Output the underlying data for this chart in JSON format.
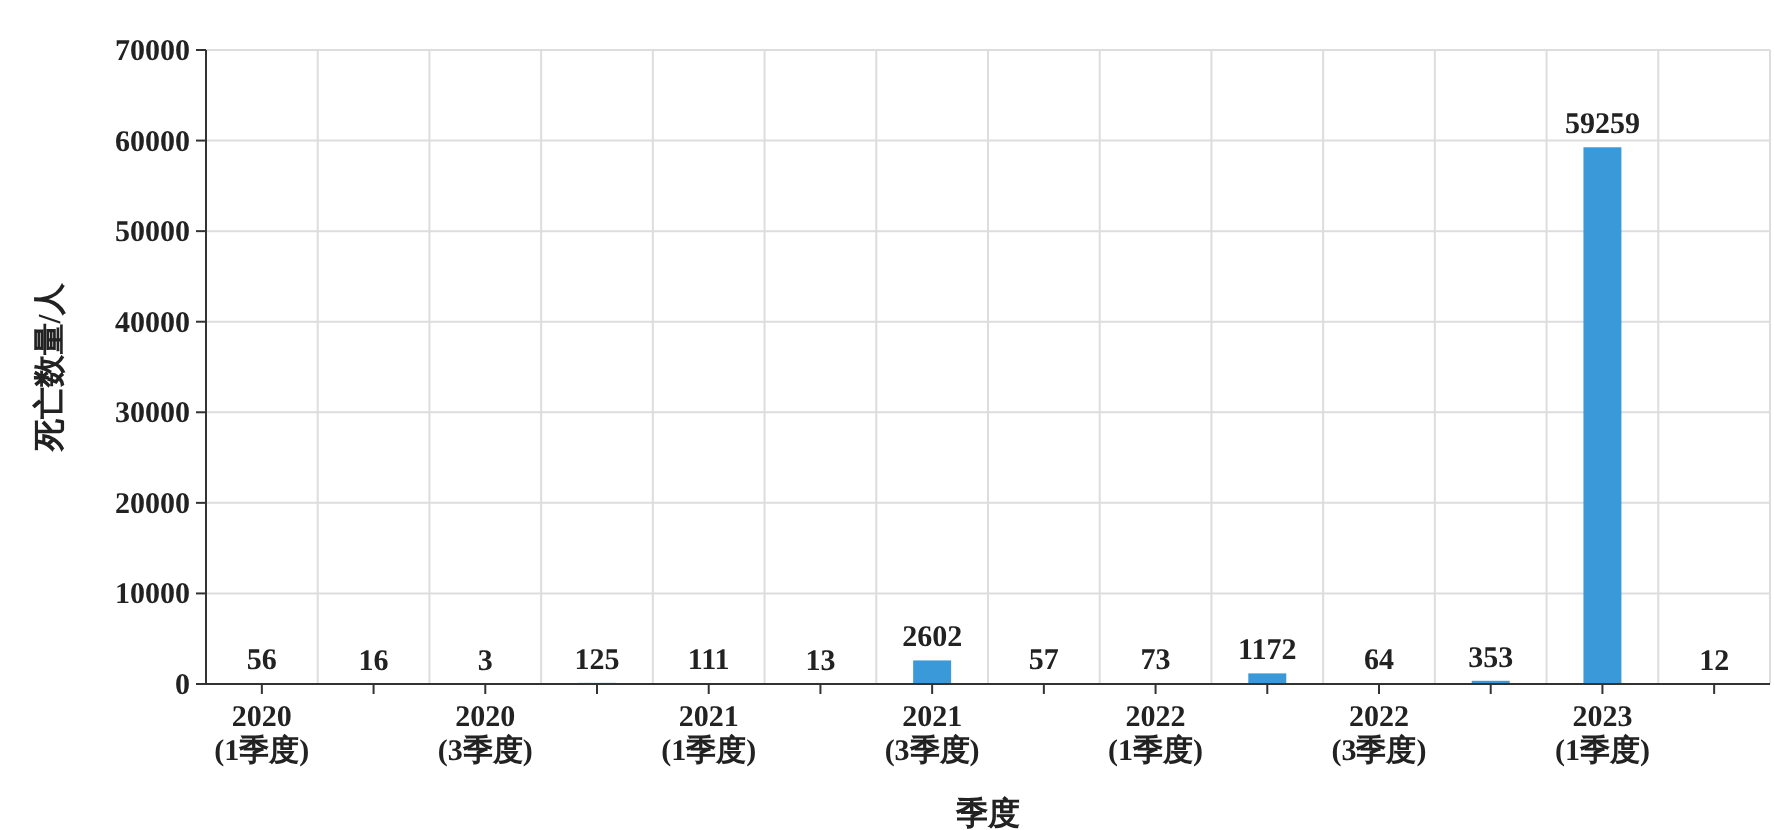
{
  "chart_data": {
    "type": "bar",
    "xlabel": "季度",
    "ylabel": "死亡数量/人",
    "categories": [
      "2020\n(1季度)",
      null,
      "2020\n(3季度)",
      null,
      "2021\n(1季度)",
      null,
      "2021\n(3季度)",
      null,
      "2022\n(1季度)",
      null,
      "2022\n(3季度)",
      null,
      "2023\n(1季度)",
      null
    ],
    "values": [
      56,
      16,
      3,
      125,
      111,
      13,
      2602,
      57,
      73,
      1172,
      64,
      353,
      59259,
      12
    ],
    "color": "#3a9ad9",
    "ylim": [
      0,
      70000
    ],
    "yticks": [
      0,
      10000,
      20000,
      30000,
      40000,
      50000,
      60000,
      70000
    ],
    "grid": true,
    "data_labels": true
  }
}
